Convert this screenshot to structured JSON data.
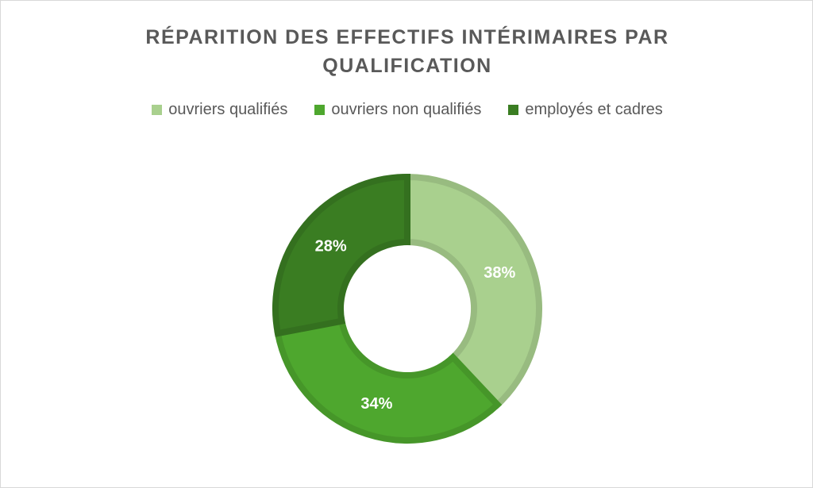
{
  "chart_data": {
    "type": "pie",
    "variant": "donut",
    "title": "RÉPARITION DES EFFECTIFS INTÉRIMAIRES PAR QUALIFICATION",
    "legend_position": "top",
    "categories": [
      "ouvriers qualifiés",
      "ouvriers non qualifiés",
      "employés et cadres"
    ],
    "values": [
      38,
      34,
      28
    ],
    "labels": [
      "38%",
      "34%",
      "28%"
    ],
    "colors": [
      "#a9d08e",
      "#4ea72e",
      "#3a7d22"
    ],
    "border_colors": [
      "#98bb80",
      "#469629",
      "#34701f"
    ]
  }
}
